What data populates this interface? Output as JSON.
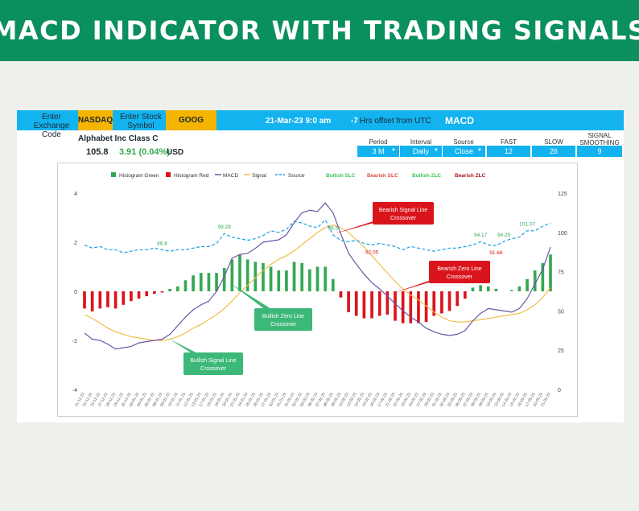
{
  "header": {
    "title": "MACD INDICATOR WITH TRADING SIGNALS"
  },
  "controls": {
    "exchange_label": "Enter Exchange Code",
    "exchange_value": "NASDAQ",
    "symbol_label": "Enter Stock Symbol",
    "symbol_value": "GOOG",
    "datetime": "21-Mar-23 9:0 am",
    "offset_value": "-7",
    "offset_label": "Hrs offset from UTC",
    "indicator_title": "MACD"
  },
  "stock": {
    "name": "Alphabet Inc Class C",
    "price": "105.8",
    "change": "3.91 (0.04%)",
    "currency": "USD"
  },
  "params": {
    "period": {
      "label": "Period",
      "value": "3 M"
    },
    "interval": {
      "label": "Interval",
      "value": "Daily"
    },
    "source": {
      "label": "Source",
      "value": "Close"
    },
    "fast": {
      "label": "FAST",
      "value": "12"
    },
    "slow": {
      "label": "SLOW",
      "value": "26"
    },
    "smoothing": {
      "label": "SIGNAL SMOOTHING",
      "value": "9"
    }
  },
  "colors": {
    "hist_green": "#35a853",
    "hist_red": "#d9151b",
    "macd": "#6a57a8",
    "signal": "#f2bd4a",
    "source": "#1b9fe3",
    "bull_callout": "#3cb878",
    "bear_callout": "#d9151b"
  },
  "chart_data": {
    "type": "line",
    "legend": [
      "Histogram Green",
      "Histogram Red",
      "MACD",
      "Signal",
      "Source",
      "Bullish SLC",
      "Bearish SLC",
      "Bullish ZLC",
      "Bearish ZLC"
    ],
    "legend_position": "top",
    "y_left_ticks": [
      "4",
      "2",
      "0",
      "-2",
      "-4"
    ],
    "y_right_ticks": [
      "125",
      "100",
      "75",
      "50",
      "25",
      "0"
    ],
    "ylim_left": [
      -4,
      4
    ],
    "ylim_right": [
      0,
      125
    ],
    "x": [
      "21-12-22",
      "22-12-22",
      "23-12-22",
      "27-12-22",
      "28-12-22",
      "29-12-22",
      "30-12-22",
      "03-01-23",
      "04-01-23",
      "05-01-23",
      "06-01-23",
      "09-01-23",
      "10-01-23",
      "11-01-23",
      "12-01-23",
      "13-01-23",
      "17-01-23",
      "18-01-23",
      "19-01-23",
      "20-01-23",
      "23-01-23",
      "24-01-23",
      "25-01-23",
      "26-01-23",
      "27-01-23",
      "30-01-23",
      "31-01-23",
      "01-02-23",
      "02-02-23",
      "03-02-23",
      "06-02-23",
      "07-02-23",
      "08-02-23",
      "09-02-23",
      "10-02-23",
      "13-02-23",
      "14-02-23",
      "15-02-23",
      "16-02-23",
      "17-02-23",
      "21-02-23",
      "22-02-23",
      "23-02-23",
      "24-02-23",
      "27-02-23",
      "28-02-23",
      "01-03-23",
      "02-03-23",
      "03-03-23",
      "06-03-23",
      "07-03-23",
      "08-03-23",
      "09-03-23",
      "10-03-23",
      "13-03-23",
      "14-03-23",
      "15-03-23",
      "16-03-23",
      "17-03-23",
      "20-03-23",
      "21-03-23"
    ],
    "macd": [
      -1.7,
      -1.95,
      -2.0,
      -2.15,
      -2.35,
      -2.3,
      -2.25,
      -2.1,
      -2.05,
      -2.0,
      -1.95,
      -1.75,
      -1.4,
      -1.05,
      -0.75,
      -0.55,
      -0.4,
      0.0,
      0.6,
      1.35,
      1.5,
      1.55,
      1.75,
      2.0,
      2.05,
      2.1,
      2.3,
      2.8,
      3.2,
      3.3,
      3.25,
      3.6,
      3.2,
      2.35,
      1.55,
      1.1,
      0.7,
      0.35,
      0.1,
      -0.2,
      -0.5,
      -0.8,
      -1.05,
      -1.25,
      -1.5,
      -1.65,
      -1.75,
      -1.8,
      -1.75,
      -1.6,
      -1.2,
      -0.9,
      -0.7,
      -0.75,
      -0.8,
      -0.85,
      -0.7,
      -0.3,
      0.3,
      0.9,
      1.8
    ],
    "signal": [
      -0.95,
      -1.1,
      -1.3,
      -1.5,
      -1.65,
      -1.75,
      -1.85,
      -1.9,
      -1.95,
      -2.0,
      -2.0,
      -1.95,
      -1.85,
      -1.7,
      -1.5,
      -1.35,
      -1.15,
      -0.95,
      -0.7,
      -0.4,
      -0.05,
      0.25,
      0.55,
      0.85,
      1.1,
      1.3,
      1.45,
      1.65,
      1.9,
      2.15,
      2.4,
      2.6,
      2.7,
      2.6,
      2.4,
      2.1,
      1.8,
      1.45,
      1.1,
      0.75,
      0.4,
      0.1,
      -0.15,
      -0.35,
      -0.6,
      -0.85,
      -1.05,
      -1.2,
      -1.25,
      -1.25,
      -1.2,
      -1.15,
      -1.1,
      -1.05,
      -1.0,
      -0.95,
      -0.9,
      -0.75,
      -0.55,
      -0.25,
      0.15
    ],
    "source": [
      92,
      90,
      91,
      89,
      89,
      87,
      88,
      89,
      89,
      90,
      89,
      88,
      89,
      89,
      90,
      91,
      91,
      93,
      99.28,
      97,
      96,
      95,
      96,
      98,
      101,
      100,
      102,
      107,
      106,
      104,
      103,
      108,
      98.5,
      95,
      94,
      95,
      93,
      92.05,
      93,
      92,
      91,
      89,
      91,
      90,
      89,
      88,
      89,
      90,
      90,
      91,
      92,
      94.17,
      92,
      91.66,
      94.25,
      96,
      97,
      101.07,
      101,
      104,
      106
    ],
    "histogram": [
      -0.7,
      -0.82,
      -0.7,
      -0.65,
      -0.7,
      -0.55,
      -0.4,
      -0.3,
      -0.2,
      -0.1,
      -0.05,
      0.1,
      0.2,
      0.45,
      0.65,
      0.75,
      0.75,
      0.75,
      0.95,
      1.3,
      1.5,
      1.3,
      1.2,
      1.15,
      1.0,
      0.85,
      0.85,
      1.2,
      1.15,
      0.9,
      1.0,
      1.0,
      0.5,
      -0.25,
      -0.85,
      -1.0,
      -1.1,
      -1.1,
      -1.0,
      -0.95,
      -1.2,
      -1.3,
      -1.3,
      -1.3,
      -1.25,
      -1.0,
      -0.9,
      -0.8,
      -0.6,
      -0.3,
      0.15,
      0.25,
      0.2,
      0.1,
      0.0,
      0.05,
      0.2,
      0.5,
      0.85,
      1.15,
      1.5
    ],
    "source_labels": [
      {
        "index": 10,
        "text": "88.8"
      },
      {
        "index": 18,
        "text": "99.28"
      },
      {
        "index": 32,
        "text": "98.5"
      },
      {
        "index": 37,
        "text": "92.05"
      },
      {
        "index": 51,
        "text": "94.17"
      },
      {
        "index": 53,
        "text": "91.66"
      },
      {
        "index": 54,
        "text": "94.25"
      },
      {
        "index": 57,
        "text": "101.07"
      }
    ],
    "callouts": [
      {
        "text": "Bearish Signal Line Crossover",
        "kind": "bear",
        "index": 32
      },
      {
        "text": "Bearish Zero Line Crossover",
        "kind": "bear",
        "index": 40
      },
      {
        "text": "Bullish Zero Line Crossover",
        "kind": "bull",
        "index": 18
      },
      {
        "text": "Bullish Signal Line Crossover",
        "kind": "bull",
        "index": 11
      }
    ]
  }
}
